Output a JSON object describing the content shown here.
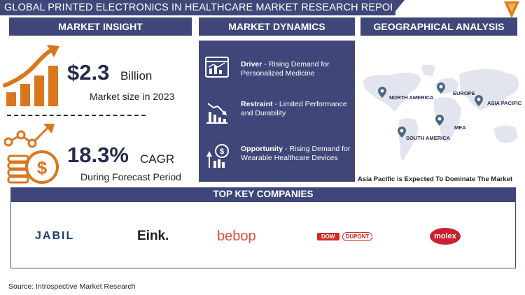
{
  "header": {
    "title": "GLOBAL PRINTED ELECTRONICS IN HEALTHCARE MARKET RESEARCH REPORT"
  },
  "sections": {
    "market_insight": "MARKET INSIGHT",
    "market_dynamics": "MARKET DYNAMICS",
    "geographical_analysis": "GEOGRAPHICAL ANALYSIS"
  },
  "insight": {
    "market_value": "$2.3",
    "market_unit": "Billion",
    "market_caption": "Market size in 2023",
    "cagr_value": "18.3%",
    "cagr_unit": "CAGR",
    "cagr_caption": "During Forecast Period"
  },
  "dynamics": [
    {
      "label": "Driver",
      "sep": " -  ",
      "text": "Rising Demand for Personalized Medicine",
      "icon": "dashboard-chart-icon"
    },
    {
      "label": "Restraint",
      "sep": " - ",
      "text": "Limited Performance and Durability",
      "icon": "declining-chart-icon"
    },
    {
      "label": "Opportunity",
      "sep": " - ",
      "text": "Rising Demand for Wearable Healthcare Devices",
      "icon": "growth-opportunity-icon"
    }
  ],
  "geography": {
    "regions": [
      "NORTH AMERICA",
      "EUROPE",
      "ASIA PACIFIC",
      "MEA",
      "SOUTH AMERICA"
    ],
    "caption": "Asia Pacific is Expected To Dominate The Market"
  },
  "companies": {
    "title": "TOP KEY COMPANIES",
    "list": [
      "JABIL",
      "Eink.",
      "bebop",
      "DOW",
      "DUPONT",
      "molex"
    ]
  },
  "footer": {
    "source": "Source: Introspective Market Research"
  },
  "colors": {
    "navy": "#3f4679",
    "orange": "#d9771e",
    "dark_text": "#262a4f"
  }
}
